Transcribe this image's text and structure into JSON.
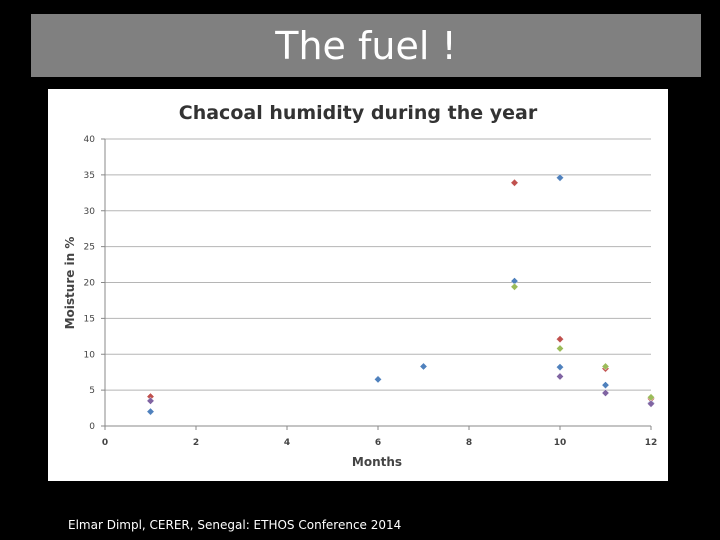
{
  "slide": {
    "title": "The fuel !",
    "footer": "Elmar Dimpl, CERER, Senegal: ETHOS Conference 2014"
  },
  "colors": {
    "background": "#000000",
    "title_bar": "#808080",
    "chart_background": "#ffffff",
    "series1": "#4f81bd",
    "series2": "#c0504d",
    "series3": "#9bbb59",
    "series4": "#8064a2"
  },
  "chart_data": {
    "type": "scatter",
    "title": "Chacoal humidity during the year",
    "xlabel": "Months",
    "ylabel": "Moisture in %",
    "xlim": [
      0,
      12
    ],
    "ylim": [
      0,
      40
    ],
    "xticks": [
      0,
      2,
      4,
      6,
      8,
      10,
      12
    ],
    "yticks": [
      0,
      5,
      10,
      15,
      20,
      25,
      30,
      35,
      40
    ],
    "grid": "horizontal",
    "legend": "none",
    "series": [
      {
        "color": "#4f81bd",
        "points": [
          [
            1,
            2.0
          ],
          [
            6,
            6.5
          ],
          [
            7,
            8.3
          ],
          [
            9,
            20.2
          ],
          [
            10,
            34.6
          ],
          [
            10,
            8.2
          ],
          [
            11,
            5.7
          ],
          [
            12,
            3.2
          ]
        ]
      },
      {
        "color": "#c0504d",
        "points": [
          [
            1,
            4.1
          ],
          [
            9,
            33.9
          ],
          [
            10,
            12.1
          ],
          [
            11,
            8.0
          ],
          [
            12,
            3.8
          ]
        ]
      },
      {
        "color": "#9bbb59",
        "points": [
          [
            9,
            19.4
          ],
          [
            10,
            10.8
          ],
          [
            11,
            8.3
          ],
          [
            12,
            4.0
          ]
        ]
      },
      {
        "color": "#8064a2",
        "points": [
          [
            1,
            3.5
          ],
          [
            10,
            6.9
          ],
          [
            11,
            4.6
          ],
          [
            12,
            3.1
          ]
        ]
      }
    ]
  }
}
